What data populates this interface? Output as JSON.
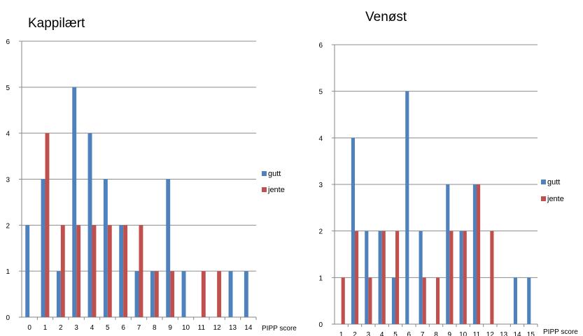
{
  "chart_data": [
    {
      "type": "bar",
      "title": "Kappilært",
      "xlabel": "PIPP score",
      "ylabel": "",
      "ylim": [
        0,
        6
      ],
      "yticks": [
        0,
        1,
        2,
        3,
        4,
        5,
        6
      ],
      "grid": true,
      "legend_position": "right",
      "categories": [
        "0",
        "1",
        "2",
        "3",
        "4",
        "5",
        "6",
        "7",
        "8",
        "9",
        "10",
        "11",
        "12",
        "13",
        "14"
      ],
      "series": [
        {
          "name": "gutt",
          "color": "#4F81BD",
          "values": [
            2,
            3,
            1,
            5,
            4,
            3,
            2,
            1,
            1,
            3,
            1,
            0,
            0,
            1,
            1
          ]
        },
        {
          "name": "jente",
          "color": "#C0504D",
          "values": [
            0,
            4,
            2,
            2,
            2,
            2,
            2,
            2,
            1,
            1,
            0,
            1,
            1,
            0,
            0
          ]
        }
      ]
    },
    {
      "type": "bar",
      "title": "Venøst",
      "xlabel": "PIPP score",
      "ylabel": "",
      "ylim": [
        0,
        6
      ],
      "yticks": [
        0,
        1,
        2,
        3,
        4,
        5,
        6
      ],
      "grid": true,
      "legend_position": "right",
      "categories": [
        "1",
        "2",
        "3",
        "4",
        "5",
        "6",
        "7",
        "8",
        "9",
        "10",
        "11",
        "12",
        "13",
        "14",
        "15"
      ],
      "series": [
        {
          "name": "gutt",
          "color": "#4F81BD",
          "values": [
            0,
            4,
            2,
            2,
            1,
            5,
            2,
            0,
            3,
            2,
            3,
            0,
            0,
            1,
            1
          ]
        },
        {
          "name": "jente",
          "color": "#C0504D",
          "values": [
            1,
            2,
            1,
            2,
            2,
            0,
            1,
            1,
            2,
            2,
            3,
            2,
            0,
            0,
            0
          ]
        }
      ]
    }
  ]
}
